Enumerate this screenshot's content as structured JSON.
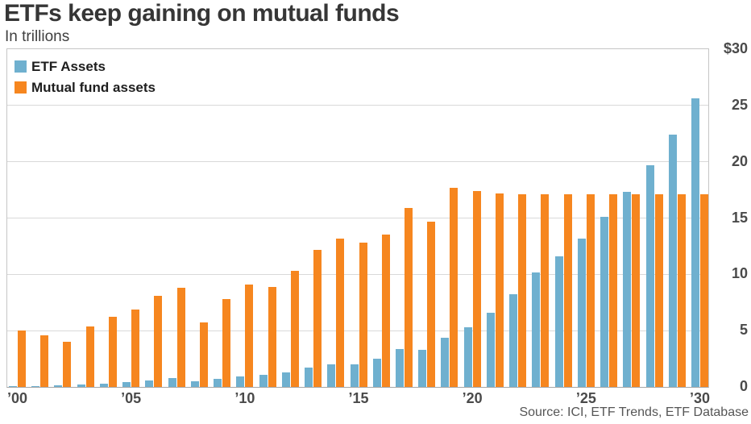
{
  "header": {
    "title": "ETFs keep gaining on mutual funds",
    "subtitle": "In trillions"
  },
  "footer": {
    "source": "Source: ICI, ETF Trends, ETF Database"
  },
  "colors": {
    "etf_blue": "#6FB0CF",
    "mutual_orange": "#F6861F",
    "gridline": "#d9d9d9",
    "plot_border": "#c6c6c6",
    "axis_line": "#a6a6a6",
    "tick_text": "#4a4a4a"
  },
  "chart_data": {
    "type": "bar",
    "title": "ETFs keep gaining on mutual funds",
    "subtitle": "In trillions",
    "units": "trillions USD",
    "categories": [
      "’00",
      "’01",
      "’02",
      "’03",
      "’04",
      "’05",
      "’06",
      "’07",
      "’08",
      "’09",
      "’10",
      "’11",
      "’12",
      "’13",
      "’14",
      "’15",
      "’16",
      "’17",
      "’18",
      "’19",
      "’20",
      "’21",
      "’22",
      "’23",
      "’24",
      "’25",
      "’26",
      "’27",
      "’28",
      "’29",
      "’30"
    ],
    "series": [
      {
        "name": "ETF Assets",
        "color": "#6FB0CF",
        "values": [
          0.1,
          0.1,
          0.15,
          0.2,
          0.3,
          0.45,
          0.6,
          0.8,
          0.5,
          0.7,
          0.95,
          1.05,
          1.3,
          1.7,
          2.0,
          2.0,
          2.5,
          3.4,
          3.3,
          4.4,
          5.3,
          6.6,
          8.2,
          10.2,
          11.6,
          13.2,
          15.1,
          17.3,
          19.7,
          22.4,
          25.6
        ]
      },
      {
        "name": "Mutual fund assets",
        "color": "#F6861F",
        "values": [
          5.0,
          4.6,
          4.0,
          5.4,
          6.2,
          6.9,
          8.1,
          8.8,
          5.7,
          7.8,
          9.1,
          8.9,
          10.3,
          12.2,
          13.2,
          12.8,
          13.5,
          15.9,
          14.7,
          17.7,
          17.4,
          17.2,
          17.1,
          17.1,
          17.1,
          17.1,
          17.1,
          17.1,
          17.1,
          17.1,
          17.1
        ]
      }
    ],
    "ylim": [
      0,
      30
    ],
    "y_tick_values": [
      30,
      25,
      20,
      15,
      10,
      5,
      0
    ],
    "y_tick_labels": [
      "$30",
      "25",
      "20",
      "15",
      "10",
      "5",
      "0"
    ],
    "x_tick_indices": [
      0,
      5,
      10,
      15,
      20,
      25,
      30
    ],
    "x_tick_labels": [
      "’00",
      "’05",
      "’10",
      "’15",
      "’20",
      "’25",
      "’30"
    ],
    "grid": true,
    "legend_position": "top-left-inside",
    "source": "Source: ICI, ETF Trends, ETF Database"
  }
}
